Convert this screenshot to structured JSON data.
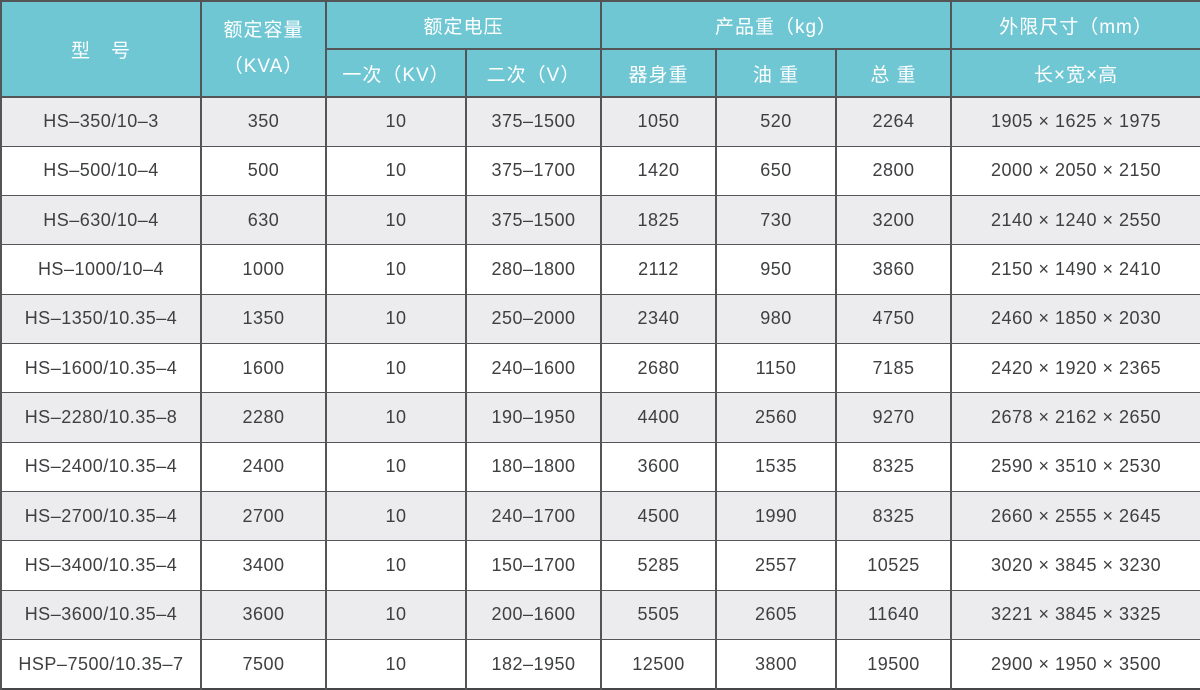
{
  "colors": {
    "header_bg": "#70c7d4",
    "header_text": "#ffffff",
    "border": "#545557",
    "row_alt_bg": "#ececee",
    "row_bg": "#ffffff",
    "cell_text": "#3e3f41"
  },
  "table": {
    "header": {
      "model": "型　号",
      "capacity_line1": "额定容量",
      "capacity_line2": "（KVA）",
      "voltage_group": "额定电压",
      "voltage_primary": "一次（KV）",
      "voltage_secondary": "二次（V）",
      "weight_group": "产品重（kg）",
      "weight_body": "器身重",
      "weight_oil": "油 重",
      "weight_total": "总 重",
      "dimensions_group": "外限尺寸（mm）",
      "dimensions_sub": "长×宽×高"
    },
    "rows": [
      [
        "HS–350/10–3",
        "350",
        "10",
        "375–1500",
        "1050",
        "520",
        "2264",
        "1905 × 1625 × 1975"
      ],
      [
        "HS–500/10–4",
        "500",
        "10",
        "375–1700",
        "1420",
        "650",
        "2800",
        "2000 × 2050 × 2150"
      ],
      [
        "HS–630/10–4",
        "630",
        "10",
        "375–1500",
        "1825",
        "730",
        "3200",
        "2140 × 1240 × 2550"
      ],
      [
        "HS–1000/10–4",
        "1000",
        "10",
        "280–1800",
        "2112",
        "950",
        "3860",
        "2150 × 1490 × 2410"
      ],
      [
        "HS–1350/10.35–4",
        "1350",
        "10",
        "250–2000",
        "2340",
        "980",
        "4750",
        "2460 × 1850 × 2030"
      ],
      [
        "HS–1600/10.35–4",
        "1600",
        "10",
        "240–1600",
        "2680",
        "1150",
        "7185",
        "2420 × 1920 × 2365"
      ],
      [
        "HS–2280/10.35–8",
        "2280",
        "10",
        "190–1950",
        "4400",
        "2560",
        "9270",
        "2678 × 2162 × 2650"
      ],
      [
        "HS–2400/10.35–4",
        "2400",
        "10",
        "180–1800",
        "3600",
        "1535",
        "8325",
        "2590 × 3510 × 2530"
      ],
      [
        "HS–2700/10.35–4",
        "2700",
        "10",
        "240–1700",
        "4500",
        "1990",
        "8325",
        "2660 × 2555 × 2645"
      ],
      [
        "HS–3400/10.35–4",
        "3400",
        "10",
        "150–1700",
        "5285",
        "2557",
        "10525",
        "3020 × 3845 × 3230"
      ],
      [
        "HS–3600/10.35–4",
        "3600",
        "10",
        "200–1600",
        "5505",
        "2605",
        "11640",
        "3221 × 3845 × 3325"
      ],
      [
        "HSP–7500/10.35–7",
        "7500",
        "10",
        "182–1950",
        "12500",
        "3800",
        "19500",
        "2900 × 1950 × 3500"
      ]
    ]
  }
}
